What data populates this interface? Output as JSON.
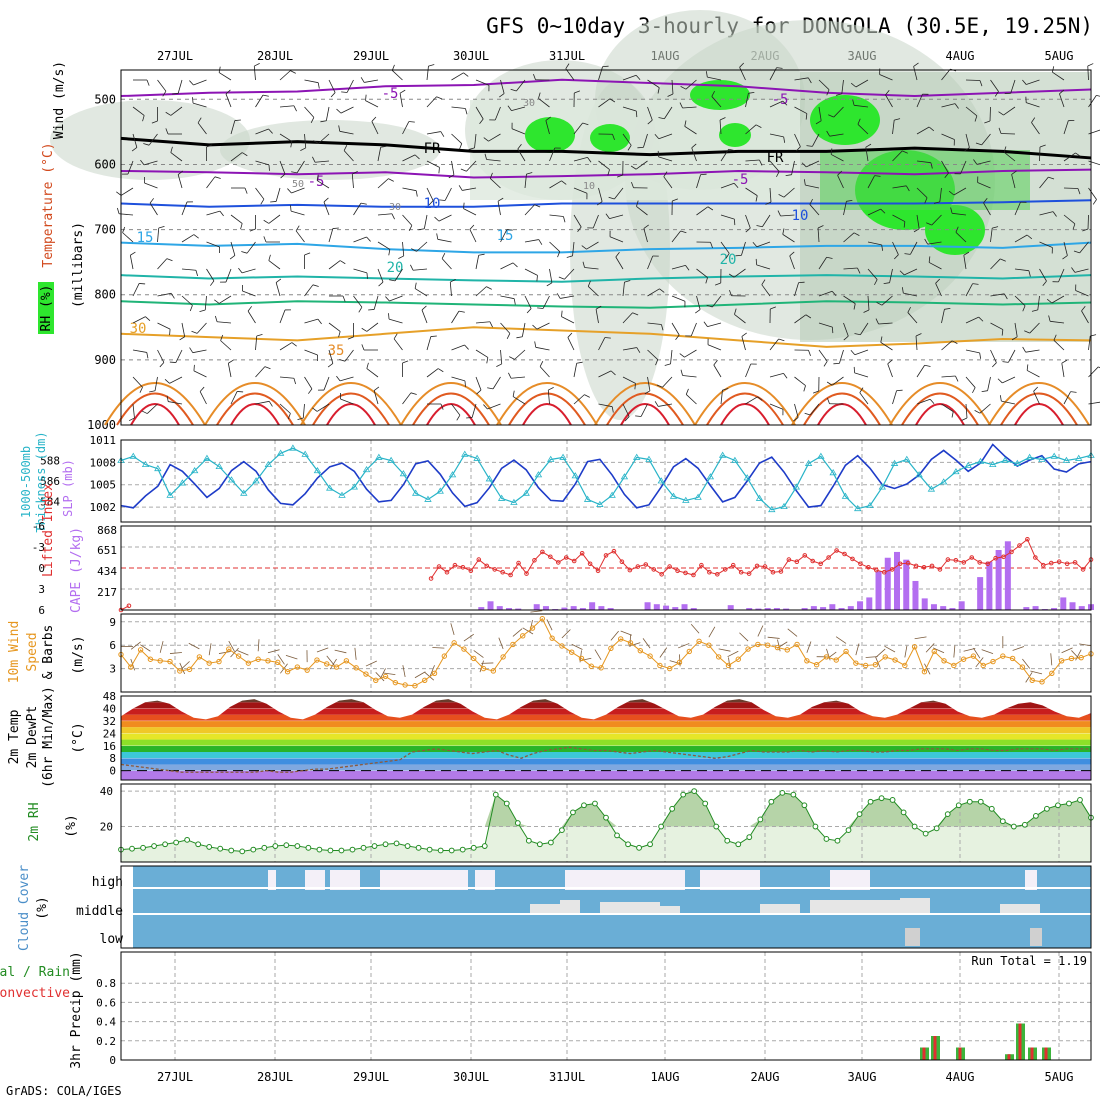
{
  "title": "GFS 0~10day 3-hourly for DONGOLA (30.5E, 19.25N)",
  "footer": "GrADS: COLA/IGES",
  "run_total_label": "Run Total = 1.19",
  "dates": [
    "27JUL",
    "28JUL",
    "29JUL",
    "30JUL",
    "31JUL",
    "1AUG",
    "2AUG",
    "3AUG",
    "4AUG",
    "5AUG"
  ],
  "colors": {
    "rh_green": "#2ee62e",
    "rh_grey": "#c8d6c8",
    "cloud_blue": "#6aaed6",
    "cloud_white": "#f4f0f8",
    "cape": "#b36ef0",
    "li": "#e03030",
    "slp": "#1e3cc8",
    "thick": "#28b4c8",
    "wind10": "#e6961e",
    "rh2m": "#238c23"
  },
  "labels": {
    "p1_wind": "Wind (m/s)",
    "p1_temp": "Temperature (°C)",
    "p1_rh": "RH (%)",
    "p1_mb": "(millibars)",
    "p2_thick": "1000-500mb Thickness (dm)",
    "p2_slp": "SLP (mb)",
    "p3_li": "Lifted Index",
    "p3_cape": "CAPE (J/kg)",
    "p4_a": "10m Wind",
    "p4_b": "Speed",
    "p4_c": "& Barbs",
    "p4_unit": "(m/s)",
    "p5_a": "2m Temp",
    "p5_b": "2m DewPt",
    "p5_c": "(6hr Min/Max)",
    "p5_unit": "(°C)",
    "p6_a": "2m RH",
    "p6_unit": "(%)",
    "p7_a": "Cloud Cover",
    "p7_unit": "(%)",
    "p7_high": "high",
    "p7_mid": "middle",
    "p7_low": "low",
    "p8_a": "3hr Precip (mm)",
    "p8_b": "tal / Rain",
    "p8_c": "Convective"
  },
  "chart_data": [
    {
      "type": "heatmap",
      "panel": "upper-air cross section",
      "y_ticks": [
        "500",
        "600",
        "700",
        "800",
        "900",
        "1000"
      ],
      "contour_labels": [
        "-5",
        "-5",
        "-5",
        "-5",
        "10",
        "10",
        "15",
        "15",
        "20",
        "20",
        "30",
        "35",
        "FR",
        "FR",
        "30",
        "50",
        "30",
        "10"
      ],
      "isotherms": [
        {
          "label": "-5",
          "values": [
            495,
            490,
            488,
            480,
            478,
            470,
            475,
            480,
            490,
            495,
            490,
            485
          ]
        },
        {
          "label": "-5",
          "values": [
            610,
            612,
            615,
            612,
            620,
            618,
            615,
            610,
            612,
            615,
            610,
            608
          ]
        },
        {
          "label": "10",
          "values": [
            660,
            665,
            662,
            665,
            665,
            660,
            660,
            660,
            660,
            660,
            658,
            655
          ]
        },
        {
          "label": "15",
          "values": [
            720,
            725,
            722,
            730,
            735,
            735,
            730,
            728,
            725,
            725,
            728,
            720
          ]
        },
        {
          "label": "20",
          "values": [
            770,
            775,
            772,
            775,
            778,
            780,
            775,
            772,
            770,
            772,
            775,
            770
          ]
        },
        {
          "label": "25",
          "values": [
            810,
            815,
            810,
            812,
            815,
            818,
            820,
            815,
            810,
            812,
            815,
            812
          ]
        },
        {
          "label": "30",
          "values": [
            860,
            865,
            870,
            860,
            850,
            855,
            860,
            870,
            880,
            875,
            868,
            870
          ]
        },
        {
          "label": "FR",
          "values": [
            560,
            570,
            565,
            570,
            580,
            580,
            585,
            580,
            580,
            575,
            580,
            590
          ]
        }
      ]
    },
    {
      "type": "line",
      "panel": "thickness and slp",
      "thickness_ylim": [
        582,
        590
      ],
      "slp_ylim": [
        1000,
        1011
      ],
      "thickness_ticks": [
        "588",
        "586",
        "584"
      ],
      "slp_ticks": [
        "1011",
        "1008",
        "1005",
        "1002"
      ],
      "series": [
        {
          "name": "1000-500mb Thickness (dm)",
          "values": [
            588.0,
            588.4,
            587.6,
            587.2,
            584.6,
            585.8,
            587.0,
            588.2,
            587.4,
            586.1,
            584.8,
            586.0,
            587.6,
            588.7,
            589.2,
            588.6,
            587.0,
            585.3,
            584.6,
            585.4,
            587.1,
            588.3,
            588.0,
            586.7,
            584.8,
            584.2,
            585.0,
            586.6,
            588.6,
            588.2,
            586.2,
            584.3,
            583.9,
            584.8,
            586.6,
            588.1,
            588.3,
            586.5,
            584.2,
            583.7,
            584.6,
            586.4,
            588.3,
            588.1,
            586.0,
            584.5,
            584.1,
            584.4,
            586.4,
            588.5,
            588.0,
            586.3,
            584.3,
            583.2,
            583.5,
            585.4,
            587.7,
            588.4,
            586.8,
            584.5,
            583.3,
            583.6,
            585.4,
            587.7,
            588.1,
            586.6,
            585.2,
            585.9,
            586.9,
            587.5,
            587.9,
            587.6,
            588.0,
            587.7,
            588.3,
            588.1,
            588.4,
            588.0,
            588.2,
            588.5
          ]
        },
        {
          "name": "SLP (mb)",
          "values": [
            1002.2,
            1001.9,
            1003.5,
            1004.8,
            1007.7,
            1006.8,
            1005.1,
            1003.3,
            1004.5,
            1006.9,
            1008.1,
            1006.8,
            1004.3,
            1002.5,
            1002.3,
            1003.8,
            1005.9,
            1007.4,
            1007.9,
            1006.8,
            1004.4,
            1002.7,
            1002.9,
            1005.0,
            1007.8,
            1008.2,
            1006.4,
            1003.9,
            1002.1,
            1002.6,
            1004.6,
            1007.2,
            1008.3,
            1007.0,
            1004.6,
            1002.9,
            1002.8,
            1005.1,
            1008.1,
            1008.4,
            1006.3,
            1003.7,
            1001.9,
            1002.3,
            1004.7,
            1007.4,
            1008.5,
            1007.2,
            1004.9,
            1002.7,
            1003.3,
            1005.5,
            1007.9,
            1008.7,
            1006.7,
            1004.2,
            1002.0,
            1002.2,
            1004.8,
            1007.6,
            1008.9,
            1007.2,
            1005.0,
            1004.5,
            1005.1,
            1006.3,
            1008.4,
            1009.6,
            1008.3,
            1006.8,
            1007.9,
            1010.4,
            1008.8,
            1007.5,
            1008.3,
            1008.9,
            1007.1,
            1006.7,
            1007.8,
            1008.1
          ]
        }
      ]
    },
    {
      "type": "bar",
      "panel": "lifted index and cape",
      "li_ticks": [
        "-6",
        "-3",
        "0",
        "3",
        "6"
      ],
      "cape_ticks": [
        "868",
        "651",
        "434",
        "217"
      ],
      "series": [
        {
          "name": "Lifted Index",
          "values": [
            6,
            5.4,
            null,
            null,
            null,
            null,
            null,
            null,
            null,
            null,
            null,
            null,
            null,
            null,
            null,
            null,
            null,
            null,
            null,
            null,
            null,
            null,
            null,
            null,
            null,
            null,
            null,
            null,
            null,
            null,
            null,
            null,
            null,
            null,
            null,
            null,
            null,
            null,
            null,
            1.5,
            -0.2,
            0.6,
            -0.4,
            -0.1,
            0.4,
            -1.2,
            -0.3,
            0.2,
            0.6,
            1.0,
            -0.7,
            0.8,
            -1.1,
            -2.3,
            -1.6,
            -0.8,
            -1.5,
            -1.0,
            -2.1,
            -0.6,
            0.4,
            -1.8,
            -2.4,
            -0.9,
            0.3,
            -0.2,
            -0.5,
            0.2,
            0.9,
            -0.2,
            0.4,
            0.7,
            1.0,
            -0.4,
            0.6,
            0.9,
            0.2,
            -0.4,
            0.6,
            0.8,
            -0.3,
            -0.2,
            0.6,
            0.5,
            -1.2,
            -0.9,
            -1.8,
            -1.0,
            -0.6,
            -1.5,
            -2.5,
            -2.0,
            -1.3,
            -0.6,
            -0.1,
            0.3,
            0.6,
            0.2,
            -0.6,
            -0.7,
            -0.3,
            -0.1,
            -0.3,
            0.2,
            -1.2,
            -1.1,
            -0.8,
            -1.5,
            -0.8,
            -0.6,
            -1.4,
            -1.6,
            -2.3,
            -3.2,
            -4.1,
            -1.5,
            -0.4,
            -0.7,
            -0.9,
            -0.6,
            -0.8,
            0.2,
            -1.2
          ]
        },
        {
          "name": "CAPE (J/kg)",
          "values": [
            0,
            0,
            0,
            0,
            0,
            0,
            0,
            0,
            0,
            0,
            0,
            0,
            0,
            0,
            0,
            0,
            0,
            0,
            0,
            0,
            0,
            0,
            0,
            0,
            0,
            0,
            0,
            0,
            0,
            0,
            0,
            0,
            0,
            0,
            0,
            0,
            0,
            0,
            0,
            30,
            90,
            40,
            20,
            15,
            0,
            60,
            40,
            10,
            25,
            40,
            20,
            80,
            40,
            20,
            0,
            0,
            5,
            80,
            60,
            45,
            30,
            60,
            20,
            0,
            0,
            5,
            50,
            0,
            20,
            15,
            20,
            20,
            15,
            0,
            20,
            40,
            30,
            60,
            20,
            40,
            90,
            130,
            400,
            540,
            600,
            520,
            300,
            120,
            60,
            40,
            20,
            90,
            0,
            340,
            500,
            620,
            710,
            0,
            30,
            40,
            10,
            20,
            130,
            80,
            40,
            60
          ]
        }
      ]
    },
    {
      "type": "line",
      "panel": "10m wind speed",
      "ylim": [
        0,
        10
      ],
      "y_ticks": [
        "9",
        "6",
        "3"
      ],
      "series": [
        {
          "name": "10m Wind Speed",
          "values": [
            4.8,
            3.2,
            5.4,
            4.2,
            4.0,
            3.9,
            2.7,
            2.9,
            4.5,
            3.7,
            3.9,
            5.5,
            4.6,
            3.7,
            4.2,
            4.0,
            3.8,
            2.6,
            3.2,
            2.8,
            4.1,
            3.6,
            3.2,
            4.0,
            3.1,
            2.3,
            1.5,
            2.0,
            1.2,
            0.9,
            0.8,
            1.5,
            2.4,
            4.6,
            6.3,
            5.5,
            4.3,
            3.0,
            2.7,
            4.5,
            6.1,
            7.2,
            8.2,
            9.4,
            6.9,
            5.9,
            5.1,
            4.3,
            3.3,
            3.1,
            5.6,
            6.8,
            6.3,
            5.3,
            4.6,
            3.4,
            3.0,
            3.8,
            5.2,
            6.5,
            6.0,
            4.5,
            3.4,
            4.2,
            5.5,
            6.1,
            6.0,
            5.7,
            5.4,
            6.1,
            4.0,
            3.5,
            4.5,
            4.1,
            5.2,
            3.7,
            3.4,
            3.5,
            4.5,
            4.1,
            3.4,
            5.8,
            2.6,
            5.2,
            4.0,
            3.4,
            4.2,
            4.6,
            3.4,
            3.9,
            4.6,
            4.3,
            3.2,
            1.5,
            1.3,
            2.4,
            4.0,
            4.3,
            4.4,
            4.9
          ]
        }
      ]
    },
    {
      "type": "area",
      "panel": "2m temp and dewpoint",
      "y_ticks": [
        "48",
        "40",
        "32",
        "24",
        "16",
        "8",
        "0"
      ],
      "series": [
        {
          "name": "2m Temp",
          "values": [
            35,
            40,
            44,
            45,
            43,
            38,
            34,
            33,
            35,
            41,
            45,
            46,
            43,
            38,
            34,
            33,
            36,
            41,
            45,
            46,
            44,
            39,
            35,
            34,
            36,
            41,
            45,
            46,
            43,
            38,
            34,
            33,
            36,
            41,
            45,
            46,
            43,
            38,
            34,
            33,
            36,
            41,
            45,
            46,
            43,
            39,
            35,
            34,
            36,
            41,
            45,
            46,
            44,
            39,
            35,
            34,
            36,
            41,
            44,
            45,
            43,
            38,
            35,
            34,
            36,
            40,
            44,
            45,
            43,
            38,
            35,
            34,
            36,
            40,
            43,
            44,
            42,
            38,
            35,
            34,
            37
          ]
        },
        {
          "name": "2m DewPt",
          "values": [
            4,
            3,
            2,
            1,
            0,
            -1,
            -1,
            -1,
            -1,
            -1,
            -1,
            -1,
            0,
            -1,
            -1,
            0,
            1,
            1,
            2,
            3,
            4,
            5,
            6,
            7,
            12,
            13,
            14,
            13,
            12,
            11,
            12,
            13,
            10,
            8,
            11,
            13,
            14,
            15,
            14,
            13,
            13,
            12,
            11,
            12,
            13,
            12,
            11,
            10,
            9,
            8,
            9,
            11,
            13,
            12,
            12,
            12,
            13,
            12,
            13,
            12,
            13,
            13,
            12,
            12,
            13,
            13,
            14,
            14,
            14,
            13,
            14,
            14,
            13,
            13,
            14,
            14,
            14,
            13,
            14,
            14,
            14
          ]
        }
      ]
    },
    {
      "type": "line",
      "panel": "2m relative humidity",
      "ylim": [
        0,
        44
      ],
      "y_ticks": [
        "40",
        "20"
      ],
      "series": [
        {
          "name": "2m RH",
          "values": [
            7,
            7.5,
            8,
            9,
            10,
            11,
            12.5,
            10,
            8.5,
            7.5,
            6.5,
            6,
            7,
            8,
            9,
            9.5,
            9,
            8,
            7,
            6.5,
            6.5,
            7,
            8,
            9,
            10,
            10.5,
            9,
            8,
            7,
            6.5,
            6.5,
            7,
            8,
            9,
            38,
            33,
            22,
            12,
            10,
            11,
            18,
            28,
            32,
            33,
            25,
            15,
            10,
            8,
            10,
            20,
            30,
            38,
            40,
            33,
            20,
            12,
            10,
            14,
            24,
            34,
            39,
            38,
            32,
            20,
            13,
            12,
            18,
            27,
            34,
            36,
            35,
            28,
            20,
            16,
            19,
            27,
            32,
            34,
            34,
            30,
            23,
            20,
            21,
            26,
            30,
            32,
            33,
            35,
            25
          ]
        }
      ]
    },
    {
      "type": "heatmap",
      "panel": "cloud cover",
      "y_ticks": [
        "high",
        "middle",
        "low"
      ]
    },
    {
      "type": "bar",
      "panel": "3hr precip",
      "ylim": [
        0,
        1.0
      ],
      "y_ticks": [
        "0.8",
        "0.6",
        "0.4",
        "0.2",
        "0"
      ],
      "series": [
        {
          "name": "Total / Rain",
          "values": [
            0.13,
            0.25,
            0,
            0.13,
            0,
            0.06,
            0.38,
            0.13,
            0.13
          ]
        },
        {
          "name": "Convective",
          "values": [
            0.13,
            0.25,
            0,
            0.13,
            0,
            0.06,
            0.38,
            0.13,
            0.13
          ]
        }
      ],
      "run_total": 1.19
    }
  ]
}
